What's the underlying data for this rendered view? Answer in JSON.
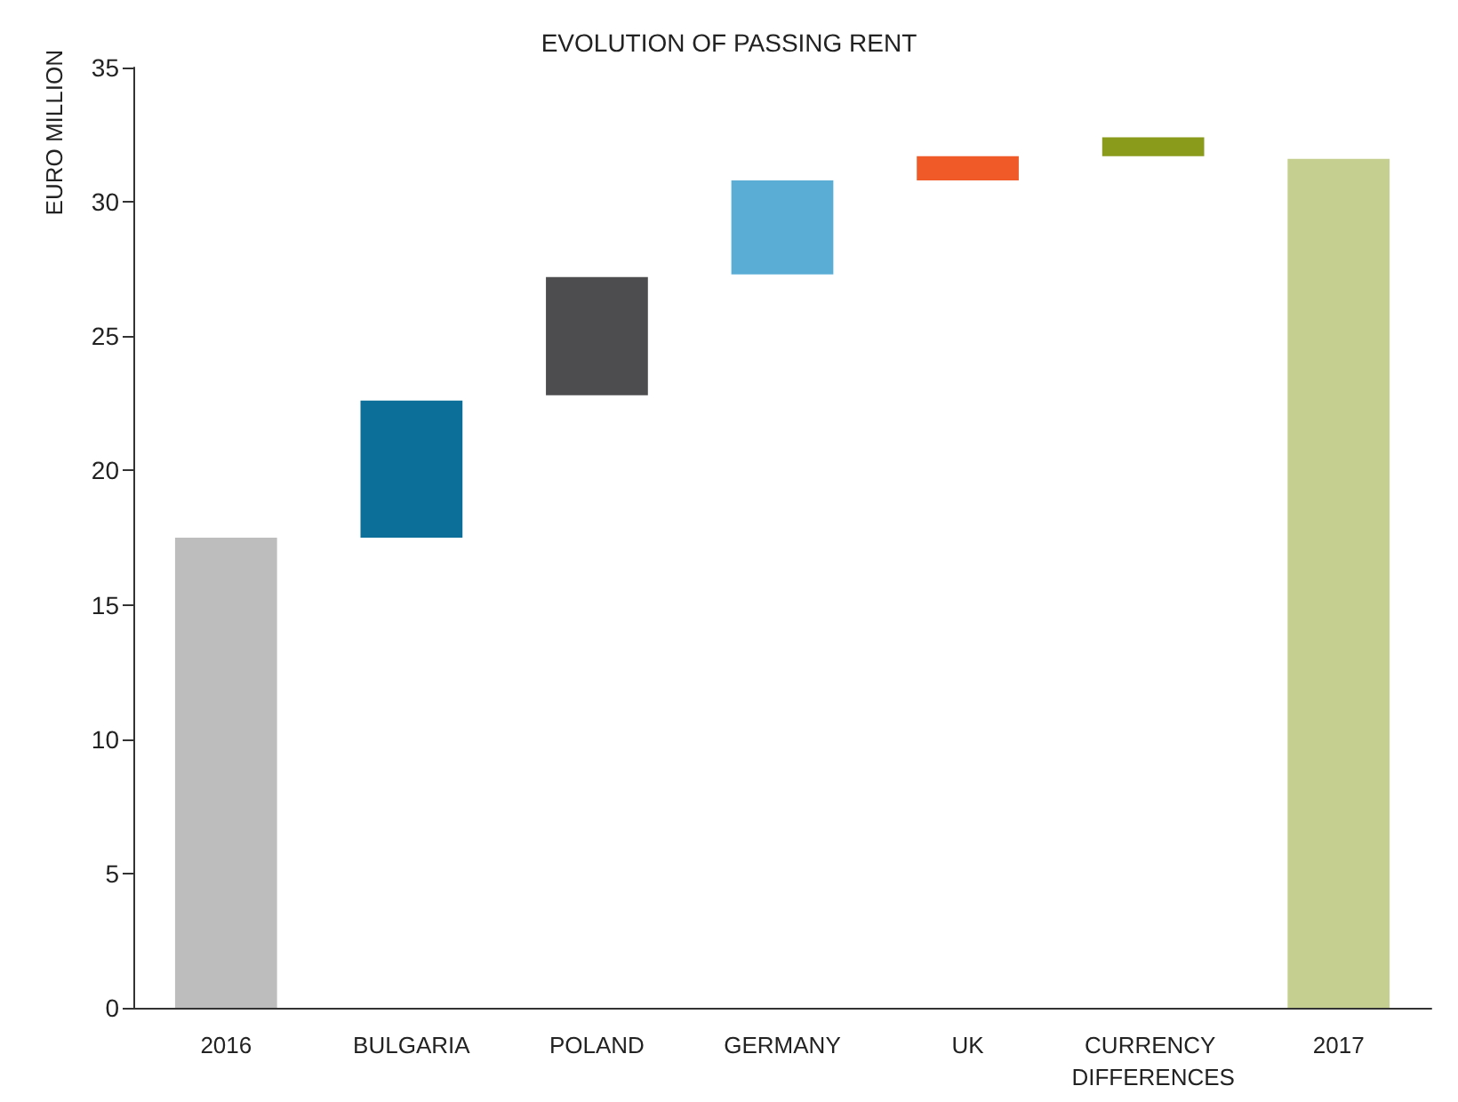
{
  "chart_data": {
    "type": "bar",
    "title": "EVOLUTION OF PASSING RENT",
    "ylabel": "EURO MILLION",
    "categories": [
      "2016",
      "BULGARIA",
      "POLAND",
      "GERMANY",
      "UK",
      "CURRENCY DIFFERENCES",
      "2017"
    ],
    "values": [
      17.5,
      5.1,
      4.4,
      3.5,
      0.9,
      0.7,
      31.6
    ],
    "base": [
      0,
      17.5,
      22.8,
      27.3,
      30.8,
      31.7,
      0
    ],
    "colors": [
      "#bdbdbd",
      "#0b6f99",
      "#4d4d4f",
      "#5aaed6",
      "#ef5a28",
      "#8a9a1b",
      "#c5cf8f"
    ],
    "ylim": [
      0,
      35
    ],
    "yticks": [
      0,
      5,
      10,
      15,
      20,
      25,
      30,
      35
    ],
    "grid": false
  }
}
